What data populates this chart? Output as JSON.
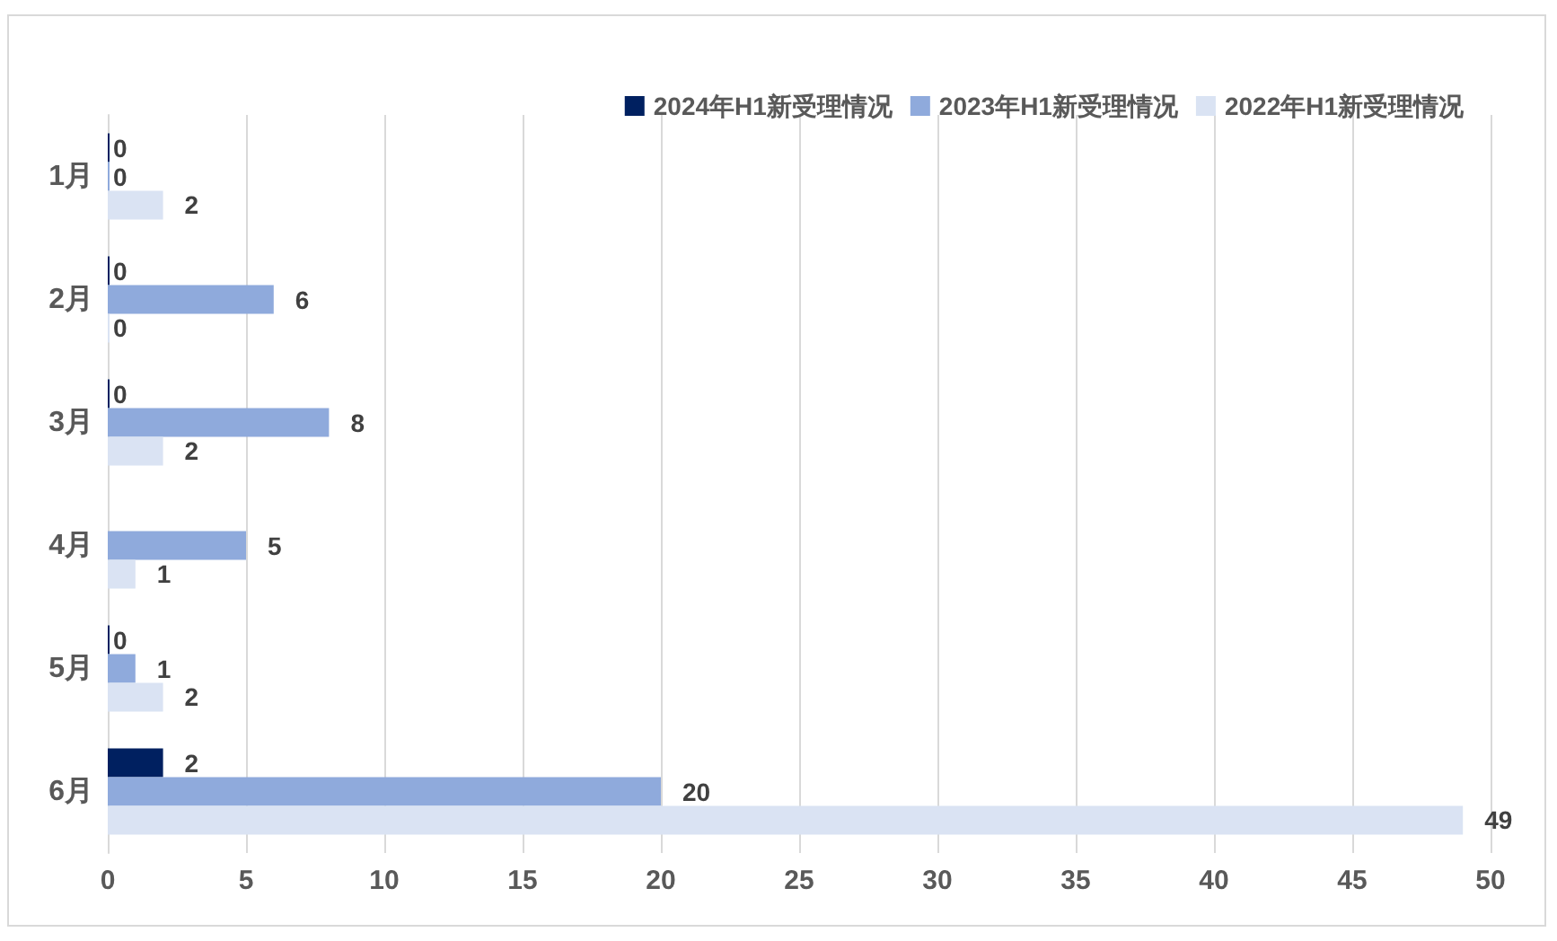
{
  "chart_data": {
    "type": "bar",
    "orientation": "horizontal",
    "categories": [
      "1月",
      "2月",
      "3月",
      "4月",
      "5月",
      "6月"
    ],
    "series": [
      {
        "name": "2024年H1新受理情况",
        "color": "#002060",
        "values": [
          0,
          0,
          0,
          null,
          0,
          2
        ]
      },
      {
        "name": "2023年H1新受理情况",
        "color": "#8faadc",
        "values": [
          0,
          6,
          8,
          5,
          1,
          20
        ]
      },
      {
        "name": "2022年H1新受理情况",
        "color": "#dae3f3",
        "values": [
          2,
          0,
          2,
          1,
          2,
          49
        ]
      }
    ],
    "xlim": [
      0,
      50
    ],
    "xticks": [
      0,
      5,
      10,
      15,
      20,
      25,
      30,
      35,
      40,
      45,
      50
    ],
    "grid": "x",
    "legend": "top right",
    "data_labels": true
  }
}
